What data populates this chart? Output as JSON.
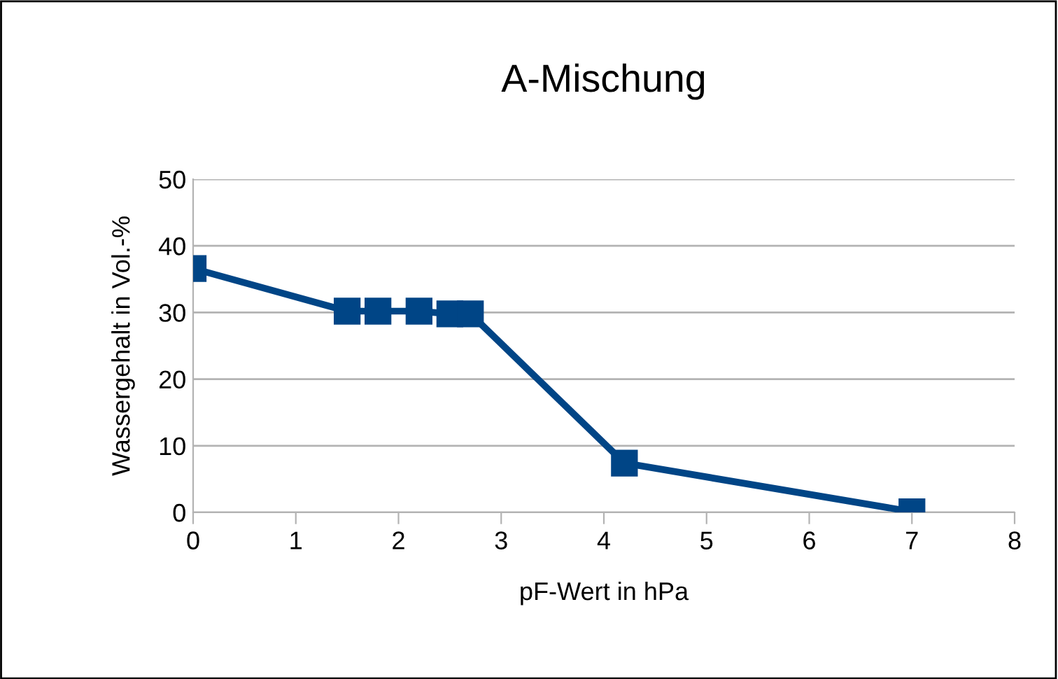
{
  "chart_data": {
    "type": "line",
    "title": "A-Mischung",
    "xlabel": "pF-Wert in hPa",
    "ylabel": "Wassergehalt in Vol.-%",
    "series": [
      {
        "color": "#004586",
        "x": [
          0,
          1.5,
          1.8,
          2.2,
          2.5,
          2.7,
          4.2,
          7
        ],
        "values": [
          36.6,
          30.2,
          30.2,
          30.2,
          29.8,
          29.8,
          7.4,
          0.1
        ]
      }
    ],
    "xlim": [
      0,
      8
    ],
    "xticks": [
      0,
      1,
      2,
      3,
      4,
      5,
      6,
      7,
      8
    ],
    "ylim": [
      0,
      50
    ],
    "yticks": [
      0,
      10,
      20,
      30,
      40,
      50
    ],
    "grid": "y",
    "marker": "square",
    "line_style": "solid"
  }
}
